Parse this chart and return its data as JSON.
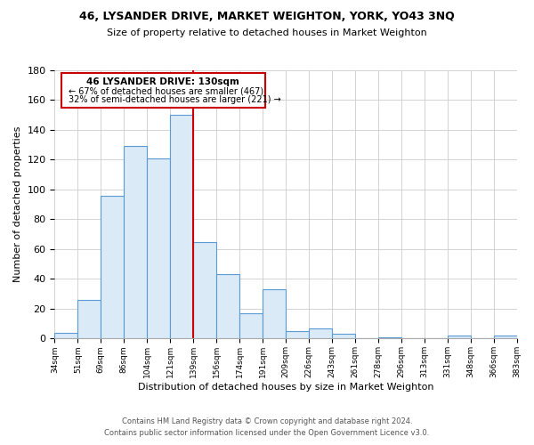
{
  "title": "46, LYSANDER DRIVE, MARKET WEIGHTON, YORK, YO43 3NQ",
  "subtitle": "Size of property relative to detached houses in Market Weighton",
  "xlabel": "Distribution of detached houses by size in Market Weighton",
  "ylabel": "Number of detached properties",
  "bin_labels": [
    "34sqm",
    "51sqm",
    "69sqm",
    "86sqm",
    "104sqm",
    "121sqm",
    "139sqm",
    "156sqm",
    "174sqm",
    "191sqm",
    "209sqm",
    "226sqm",
    "243sqm",
    "261sqm",
    "278sqm",
    "296sqm",
    "313sqm",
    "331sqm",
    "348sqm",
    "366sqm",
    "383sqm"
  ],
  "bin_values": [
    4,
    26,
    96,
    129,
    121,
    150,
    65,
    43,
    17,
    33,
    5,
    7,
    3,
    0,
    1,
    0,
    0,
    2,
    0,
    2
  ],
  "bar_color": "#daeaf7",
  "bar_edge_color": "#5b9bd5",
  "ylim": [
    0,
    180
  ],
  "yticks": [
    0,
    20,
    40,
    60,
    80,
    100,
    120,
    140,
    160,
    180
  ],
  "annotation_title": "46 LYSANDER DRIVE: 130sqm",
  "annotation_line1": "← 67% of detached houses are smaller (467)",
  "annotation_line2": "32% of semi-detached houses are larger (221) →",
  "footer1": "Contains HM Land Registry data © Crown copyright and database right 2024.",
  "footer2": "Contains public sector information licensed under the Open Government Licence v3.0.",
  "background_color": "#ffffff",
  "grid_color": "#cccccc"
}
